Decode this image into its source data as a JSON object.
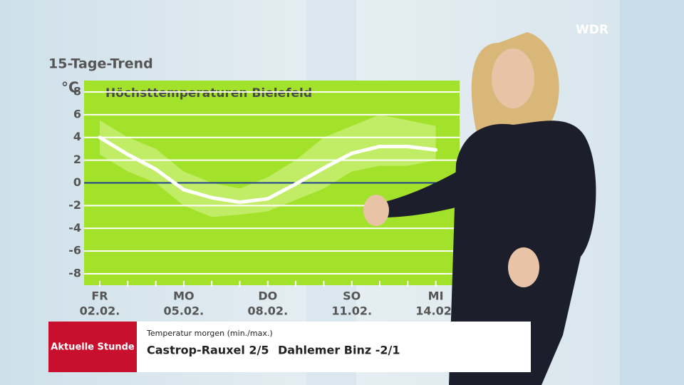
{
  "chart_data": {
    "type": "line",
    "title": "15-Tage-Trend",
    "subtitle": "Höchsttemperaturen Bielefeld",
    "y_label": "°C",
    "weekdays": [
      "FR",
      null,
      null,
      "MO",
      null,
      null,
      "DO",
      null,
      null,
      "SO",
      null,
      null,
      "MI"
    ],
    "categories": [
      "02.02.",
      null,
      null,
      "05.02.",
      null,
      null,
      "08.02.",
      null,
      null,
      "11.02.",
      null,
      null,
      "14.02."
    ],
    "series": [
      {
        "color": "#ffffff",
        "values": [
          4.0,
          2.5,
          1.2,
          -0.6,
          -1.3,
          -1.7,
          -1.4,
          -0.1,
          1.3,
          2.6,
          3.2,
          3.2,
          2.9
        ]
      }
    ],
    "range": {
      "color": "#c6ee70",
      "low": [
        2.5,
        1.0,
        0.0,
        -2.0,
        -3.0,
        -2.8,
        -2.5,
        -1.5,
        -0.5,
        1.0,
        1.5,
        1.5,
        2.0
      ],
      "high": [
        5.5,
        4.0,
        3.0,
        1.0,
        0.0,
        -0.5,
        0.5,
        2.0,
        4.0,
        5.0,
        6.0,
        5.5,
        5.0
      ]
    },
    "ylim": [
      -9,
      9
    ],
    "yticks": [
      8,
      6,
      4,
      2,
      0,
      -2,
      -4,
      -6,
      -8
    ],
    "grid": true,
    "zero_line_color": "#1c3f94",
    "background": "#a3e22a"
  },
  "logo": "WDR",
  "lower_third": {
    "show": "Aktuelle Stunde",
    "caption": "Temperatur morgen (min./max.)",
    "lines": [
      "Castrop-Rauxel 2/5",
      "Dahlemer Binz -2/1"
    ]
  }
}
